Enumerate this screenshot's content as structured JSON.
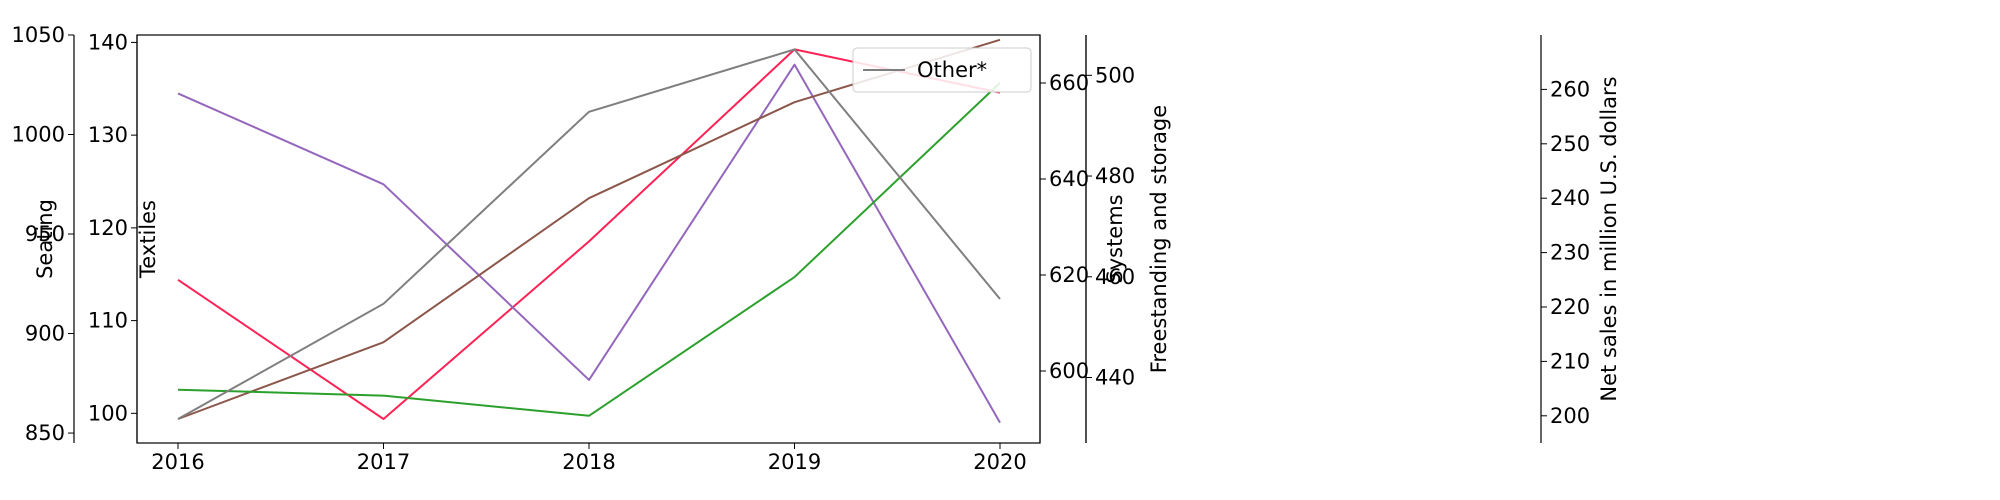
{
  "chart_data": {
    "type": "line",
    "x": [
      2016,
      2017,
      2018,
      2019,
      2020
    ],
    "axes": {
      "seating": {
        "label": "Seating",
        "ylim": [
          845,
          1050
        ],
        "ticks": [
          850,
          900,
          950,
          1000,
          1050
        ]
      },
      "textiles": {
        "label": "Textiles",
        "ylim": [
          96.8,
          140.8
        ],
        "ticks": [
          100,
          110,
          120,
          130,
          140
        ]
      },
      "other": {
        "label": "",
        "ylim": [
          585,
          670
        ],
        "ticks": [
          600,
          620,
          640,
          660
        ]
      },
      "systems": {
        "label": "Systems",
        "ylim": [
          427,
          508
        ],
        "ticks": [
          440,
          460,
          480,
          500
        ]
      },
      "freestanding": {
        "label": "Freestanding and storage",
        "ylim": [],
        "ticks": []
      },
      "net_sales": {
        "label": "Net sales in million U.S. dollars",
        "ylim": [
          195,
          270
        ],
        "ticks": [
          200,
          210,
          220,
          230,
          240,
          250,
          260
        ]
      }
    },
    "series": [
      {
        "key": "seating_line",
        "axis": "other",
        "color": "#ff2255",
        "values": [
          619,
          590,
          627,
          667,
          658
        ]
      },
      {
        "key": "textiles_line",
        "axis": "textiles",
        "color": "#9467bd",
        "values": [
          134.5,
          124.7,
          103.6,
          137.6,
          99.0
        ]
      },
      {
        "key": "systems_line",
        "axis": "other",
        "color": "#8c564b",
        "values": [
          590,
          606,
          636,
          656,
          669
        ]
      },
      {
        "key": "freestanding_line",
        "axis": "net_sales",
        "color": "#2ca02c",
        "values": [
          204.8,
          203.7,
          200.0,
          225.5,
          261.2
        ]
      },
      {
        "name": "Other*",
        "key": "other_line",
        "axis": "other",
        "color": "#7f7f7f",
        "values": [
          590,
          614,
          654,
          667,
          615
        ]
      }
    ],
    "legend_position": "top-right",
    "grid": false
  }
}
